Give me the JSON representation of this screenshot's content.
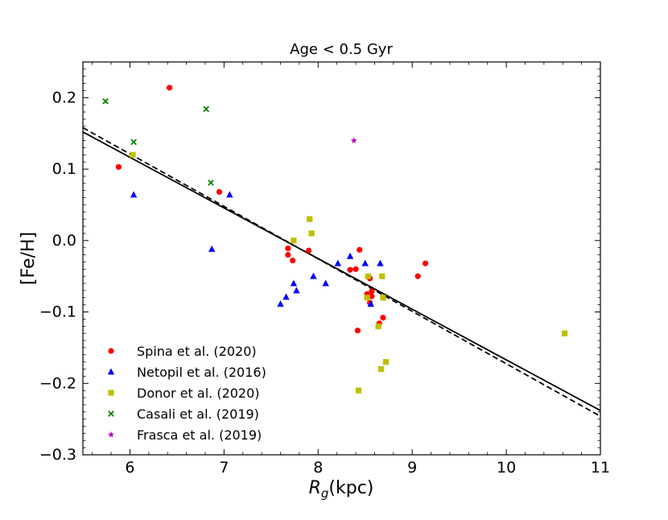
{
  "chart_data": {
    "type": "scatter",
    "title": "Age < 0.5 Gyr",
    "xlabel_main": "R",
    "xlabel_sub": "g",
    "xlabel_unit": "(kpc)",
    "ylabel": "[Fe/H]",
    "xlim": [
      5.5,
      11
    ],
    "ylim": [
      -0.3,
      0.25
    ],
    "xticks": [
      6,
      7,
      8,
      9,
      10,
      11
    ],
    "xtick_labels": [
      "6",
      "7",
      "8",
      "9",
      "10",
      "11"
    ],
    "yticks": [
      -0.3,
      -0.2,
      -0.1,
      0.0,
      0.1,
      0.2
    ],
    "ytick_labels": [
      "−0.3",
      "−0.2",
      "−0.1",
      "0.0",
      "0.1",
      "0.2"
    ],
    "legend_position": "lower-left",
    "series": [
      {
        "name": "Spina et al. (2020)",
        "marker": "circle",
        "color": "#ff0000",
        "x": [
          5.88,
          6.42,
          6.95,
          7.68,
          7.68,
          7.73,
          7.9,
          8.34,
          8.4,
          8.44,
          8.52,
          8.55,
          8.55,
          8.57,
          8.57,
          8.42,
          8.65,
          8.69,
          9.06,
          9.14
        ],
        "y": [
          0.103,
          0.214,
          0.068,
          -0.011,
          -0.02,
          -0.028,
          -0.014,
          -0.041,
          -0.04,
          -0.013,
          -0.075,
          -0.087,
          -0.053,
          -0.078,
          -0.071,
          -0.126,
          -0.116,
          -0.108,
          -0.05,
          -0.032
        ]
      },
      {
        "name": "Netopil et al. (2016)",
        "marker": "triangle",
        "color": "#0000ff",
        "x": [
          6.04,
          6.87,
          7.06,
          7.6,
          7.66,
          7.74,
          7.77,
          7.95,
          8.08,
          8.21,
          8.34,
          8.5,
          8.56,
          8.66
        ],
        "y": [
          0.064,
          -0.012,
          0.064,
          -0.089,
          -0.079,
          -0.06,
          -0.07,
          -0.05,
          -0.06,
          -0.032,
          -0.022,
          -0.032,
          -0.089,
          -0.032
        ]
      },
      {
        "name": "Donor et al. (2020)",
        "marker": "square",
        "color": "#bfbf00",
        "x": [
          6.03,
          7.74,
          7.91,
          7.93,
          8.43,
          8.52,
          8.53,
          8.64,
          8.67,
          8.68,
          8.69,
          8.72,
          10.62
        ],
        "y": [
          0.12,
          0.0,
          0.03,
          0.01,
          -0.21,
          -0.08,
          -0.05,
          -0.12,
          -0.18,
          -0.05,
          -0.08,
          -0.17,
          -0.13
        ]
      },
      {
        "name": "Casali et al. (2019)",
        "marker": "x",
        "color": "#008000",
        "x": [
          5.74,
          6.04,
          6.81,
          6.86
        ],
        "y": [
          0.195,
          0.138,
          0.184,
          0.081
        ]
      },
      {
        "name": "Frasca et al. (2019)",
        "marker": "star",
        "color": "#bf00bf",
        "x": [
          8.38
        ],
        "y": [
          0.14
        ]
      }
    ],
    "fit_lines": [
      {
        "name": "solid-fit",
        "style": "solid",
        "x": [
          5.5,
          11
        ],
        "y": [
          0.152,
          -0.238
        ]
      },
      {
        "name": "dashed-fit",
        "style": "dashed",
        "x": [
          5.5,
          11
        ],
        "y": [
          0.158,
          -0.246
        ]
      }
    ]
  }
}
